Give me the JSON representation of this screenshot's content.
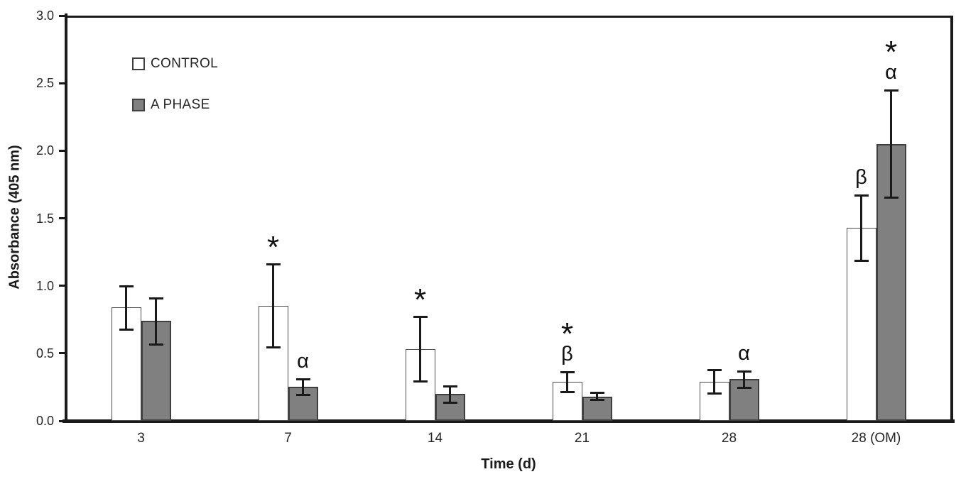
{
  "chart_data": {
    "type": "bar",
    "title": "",
    "xlabel": "Time (d)",
    "ylabel": "Absorbance (405 nm)",
    "ylim": [
      0,
      3
    ],
    "ytick_step": 0.5,
    "yticks": [
      "0.0",
      "0.5",
      "1.0",
      "1.5",
      "2.0",
      "2.5",
      "3.0"
    ],
    "categories": [
      "3",
      "7",
      "14",
      "21",
      "28",
      "28 (OM)"
    ],
    "grid": false,
    "legend_position": "inside-top-left",
    "axis_color": "#1a1a1a",
    "error_bar_color": "#1a1a1a",
    "series": [
      {
        "name": "CONTROL",
        "fill": "#ffffff",
        "border": "#4d4d4d",
        "values": [
          0.84,
          0.85,
          0.53,
          0.29,
          0.29,
          1.43
        ],
        "error_plus": [
          0.16,
          0.31,
          0.24,
          0.07,
          0.09,
          0.24
        ],
        "error_minus": [
          0.17,
          0.31,
          0.24,
          0.08,
          0.09,
          0.25
        ],
        "annotations": [
          [],
          [
            "*"
          ],
          [
            "*"
          ],
          [
            "*",
            "β"
          ],
          [],
          [
            "β"
          ]
        ]
      },
      {
        "name": "A PHASE",
        "fill": "#808080",
        "border": "#3f3f3f",
        "values": [
          0.74,
          0.25,
          0.2,
          0.18,
          0.31,
          2.05
        ],
        "error_plus": [
          0.17,
          0.06,
          0.06,
          0.03,
          0.06,
          0.4
        ],
        "error_minus": [
          0.18,
          0.06,
          0.07,
          0.03,
          0.07,
          0.4
        ],
        "annotations": [
          [],
          [
            "α"
          ],
          [],
          [],
          [
            "α"
          ],
          [
            "*",
            "α"
          ]
        ]
      }
    ]
  }
}
